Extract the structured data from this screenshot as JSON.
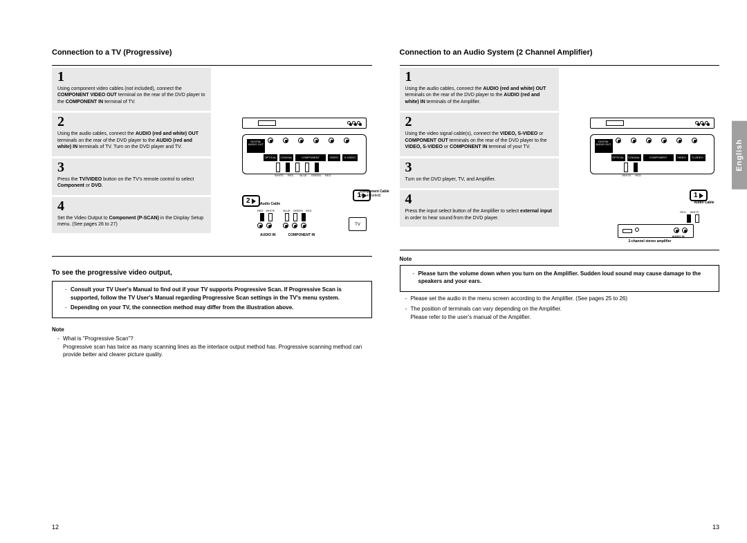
{
  "left": {
    "title": "Connection to a TV (Progressive)",
    "steps": [
      {
        "n": "1",
        "t": "Using component video cables (not included), connect the <b>COMPONENT VIDEO OUT</b> terminal on the rear of the DVD player to the <b>COMPONENT IN</b> terminal of TV."
      },
      {
        "n": "2",
        "t": "Using the audio cables, connect the <b>AUDIO (red and white) OUT</b> terminals on the rear of the DVD player to the <b>AUDIO (red and white) IN</b> terminals of TV. Turn on the DVD player and TV."
      },
      {
        "n": "3",
        "t": "Press the <b>TV/VIDEO</b> button on the TV's remote control to select <b>Component</b> or <b>DVD</b>."
      },
      {
        "n": "4",
        "t": "Set the Video Output to <b>Component (P-SCAN)</b> in the Display Setup menu. (See pages 26 to 27)"
      }
    ],
    "sub_heading": "To see the progressive video output,",
    "box_lines": [
      "<b>Consult your TV User's Manual to find out if your TV supports Progressive Scan. If Progressive Scan is supported, follow the TV User's Manual regarding Progressive Scan settings in the TV's menu system.</b>",
      "<b>Depending on your TV, the connection method may differ from the illustration above.</b>"
    ],
    "note_heading": "Note",
    "note_body": "What is \"Progressive Scan\"?\nProgressive scan has twice as many scanning lines as the interlace output method has. Progressive scanning method can provide better and clearer picture quality.",
    "page_num": "12",
    "diagram_labels": {
      "comp_cable": "Component Cable",
      "not_incl": "(not included)",
      "audio_cable": "Audio Cable",
      "audioin": "AUDIO IN",
      "compin": "COMPONENT IN",
      "tv": "TV",
      "red": "RED",
      "white": "WHITE",
      "blue": "BLUE",
      "green": "GREEN"
    }
  },
  "right": {
    "title": "Connection to an Audio System (2 Channel Amplifier)",
    "steps": [
      {
        "n": "1",
        "t": "Using the audio cables, connect the <b>AUDIO (red and white) OUT</b> terminals on the rear of the DVD player to the <b>AUDIO (red and white) IN</b> terminals of the Amplifier."
      },
      {
        "n": "2",
        "t": "Using the video signal cable(s), connect the <b>VIDEO, S-VIDEO</b> or <b>COMPONENT OUT</b> terminals on the rear of the DVD player to the <b>VIDEO, S-VIDEO</b> or <b>COMPONENT IN</b> terminal of your TV."
      },
      {
        "n": "3",
        "t": "Turn on the DVD player, TV, and Amplifier."
      },
      {
        "n": "4",
        "t": "Press the input select button of the Amplifier to select <b>external input</b>  in order to hear sound from the DVD player."
      }
    ],
    "note_heading": "Note",
    "box_lines": [
      "<b>Please turn the volume down when you turn on the Amplifier. Sudden loud sound may cause damage to the speakers and your ears.</b>"
    ],
    "tail_lines": [
      "Please set the audio in the menu screen according to the Amplifier. (See pages 25 to 26)",
      "The position of terminals can vary depending on the Amplifier.\nPlease refer to the user's manual of the Amplifier."
    ],
    "page_num": "13",
    "lang_tab": "English",
    "diagram_labels": {
      "audio_cable": "Audio Cable",
      "amp": "2-channel stereo amplifier",
      "audioin": "AUDIO IN",
      "red": "RED",
      "white": "WHITE"
    }
  }
}
